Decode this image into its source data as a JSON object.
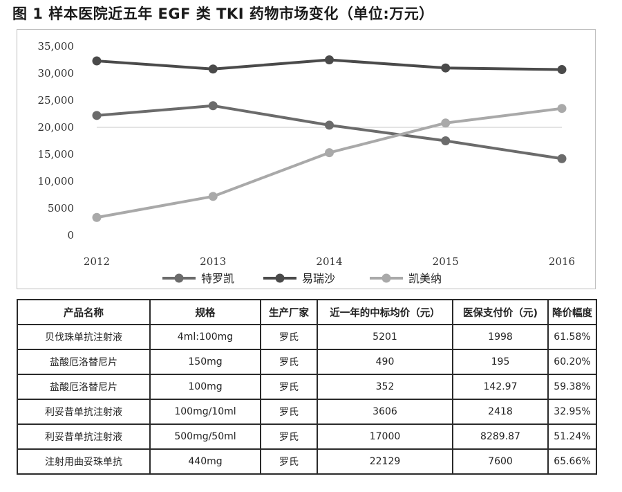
{
  "figure_title": "图 1 样本医院近五年 EGF 类 TKI 药物市场变化（单位:万元）",
  "chart_data": {
    "type": "line",
    "x": [
      "2012",
      "2013",
      "2014",
      "2015",
      "2016"
    ],
    "series": [
      {
        "name": "特罗凯",
        "values": [
          22200,
          24000,
          20400,
          17500,
          14200
        ],
        "color": "#6b6b6b"
      },
      {
        "name": "易瑞沙",
        "values": [
          32300,
          30800,
          32500,
          31000,
          30700
        ],
        "color": "#4a4a4a"
      },
      {
        "name": "凯美纳",
        "values": [
          3300,
          7200,
          15300,
          20800,
          23500
        ],
        "color": "#a9a9a9"
      }
    ],
    "ylim": [
      0,
      35000
    ],
    "yticks": [
      0,
      5000,
      10000,
      15000,
      20000,
      25000,
      30000,
      35000
    ],
    "ytick_labels": [
      "0",
      "5000",
      "10,000",
      "15,000",
      "20,000",
      "25,000",
      "30,000",
      "35,000"
    ],
    "gridlines": [
      20000
    ],
    "legend_position": "bottom"
  },
  "table": {
    "headers": [
      "产品名称",
      "规格",
      "生产厂家",
      "近一年的中标均价（元）",
      "医保支付价（元)",
      "降价幅度"
    ],
    "rows": [
      [
        "贝伐珠单抗注射液",
        "4ml:100mg",
        "罗氏",
        "5201",
        "1998",
        "61.58%"
      ],
      [
        "盐酸厄洛替尼片",
        "150mg",
        "罗氏",
        "490",
        "195",
        "60.20%"
      ],
      [
        "盐酸厄洛替尼片",
        "100mg",
        "罗氏",
        "352",
        "142.97",
        "59.38%"
      ],
      [
        "利妥昔单抗注射液",
        "100mg/10ml",
        "罗氏",
        "3606",
        "2418",
        "32.95%"
      ],
      [
        "利妥昔单抗注射液",
        "500mg/50ml",
        "罗氏",
        "17000",
        "8289.87",
        "51.24%"
      ],
      [
        "注射用曲妥珠单抗",
        "440mg",
        "罗氏",
        "22129",
        "7600",
        "65.66%"
      ]
    ]
  }
}
